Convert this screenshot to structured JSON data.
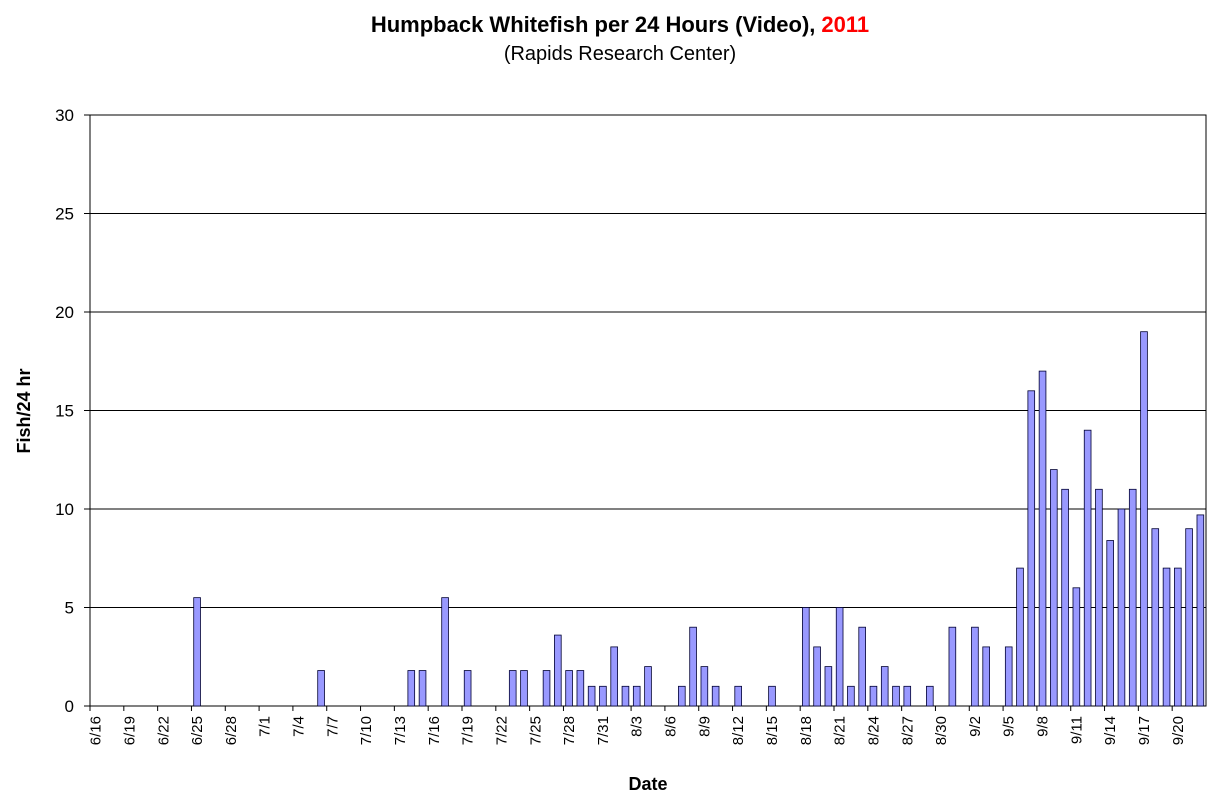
{
  "chart_data": {
    "type": "bar",
    "title": "Humpback Whitefish per 24 Hours (Video),",
    "title_year": "2011",
    "subtitle": "(Rapids Research Center)",
    "y_label": "Fish/24 hr",
    "x_label": "Date",
    "color": "#9999ff",
    "title_year_color": "#ff0000",
    "grid": true,
    "ylim": [
      0,
      30
    ],
    "yticks": [
      0,
      5,
      10,
      15,
      20,
      25,
      30
    ],
    "categories": [
      "6/16",
      null,
      null,
      "6/19",
      null,
      null,
      "6/22",
      null,
      null,
      "6/25",
      null,
      null,
      "6/28",
      null,
      null,
      "7/1",
      null,
      null,
      "7/4",
      null,
      null,
      "7/7",
      null,
      null,
      "7/10",
      null,
      null,
      "7/13",
      null,
      null,
      "7/16",
      null,
      null,
      "7/19",
      null,
      null,
      "7/22",
      null,
      null,
      "7/25",
      null,
      null,
      "7/28",
      null,
      null,
      "7/31",
      null,
      null,
      "8/3",
      null,
      null,
      "8/6",
      null,
      null,
      "8/9",
      null,
      null,
      "8/12",
      null,
      null,
      "8/15",
      null,
      null,
      "8/18",
      null,
      null,
      "8/21",
      null,
      null,
      "8/24",
      null,
      null,
      "8/27",
      null,
      null,
      "8/30",
      null,
      null,
      "9/2",
      null,
      null,
      "9/5",
      null,
      null,
      "9/8",
      null,
      null,
      "9/11",
      null,
      null,
      "9/14",
      null,
      null,
      "9/17",
      null,
      null,
      "9/20",
      null,
      null
    ],
    "values": [
      0,
      0,
      0,
      0,
      0,
      0,
      0,
      0,
      0,
      5.5,
      0,
      0,
      0,
      0,
      0,
      0,
      0,
      0,
      0,
      0,
      1.8,
      0,
      0,
      0,
      0,
      0,
      0,
      0,
      1.8,
      1.8,
      0,
      5.5,
      0,
      1.8,
      0,
      0,
      0,
      1.8,
      1.8,
      0,
      1.8,
      3.6,
      1.8,
      1.8,
      1,
      1,
      3,
      1,
      1,
      2,
      0,
      0,
      1,
      4,
      2,
      1,
      0,
      1,
      0,
      0,
      1,
      0,
      0,
      5,
      3,
      2,
      5,
      1,
      4,
      1,
      2,
      1,
      1,
      0,
      1,
      0,
      4,
      0,
      4,
      3,
      0,
      3,
      7,
      16,
      17,
      12,
      11,
      6,
      14,
      11,
      8.4,
      10,
      11,
      19,
      9,
      7,
      7,
      9,
      9.7
    ]
  }
}
